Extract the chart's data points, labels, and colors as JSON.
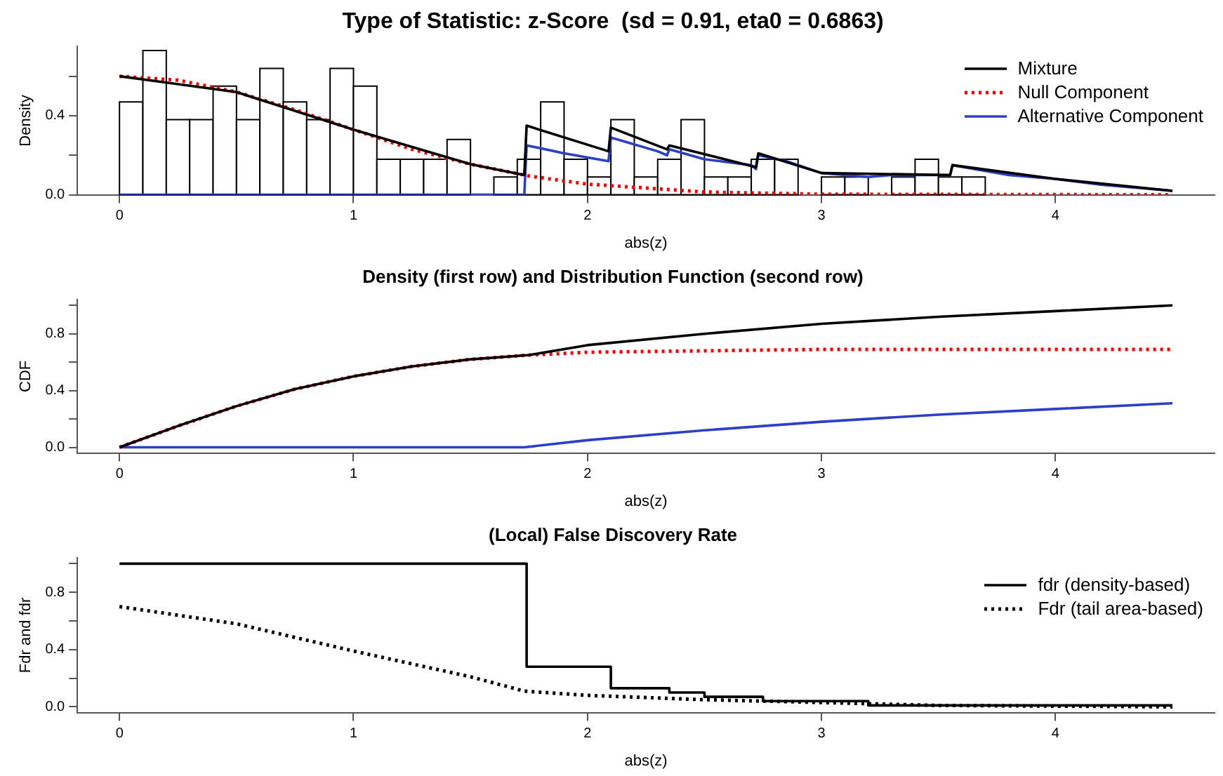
{
  "chart_data": [
    {
      "type": "histogram",
      "title": "Type of Statistic: z-Score  (sd = 0.91, eta0 = 0.6863)",
      "xlabel": "abs(z)",
      "ylabel": "Density",
      "color": "#ffffff",
      "bins": [
        0,
        0.1,
        0.2,
        0.3,
        0.4,
        0.5,
        0.6,
        0.7,
        0.8,
        0.9,
        1,
        1.1,
        1.2,
        1.3,
        1.4,
        1.5,
        1.6,
        1.7,
        1.8,
        1.9,
        2,
        2.1,
        2.2,
        2.3,
        2.4,
        2.5,
        2.6,
        2.7,
        2.8,
        2.9,
        3,
        3.1,
        3.2,
        3.3,
        3.4,
        3.5,
        3.6,
        3.7,
        3.8,
        3.9,
        4,
        4.1,
        4.2,
        4.3,
        4.4,
        4.5
      ],
      "values": [
        0.47,
        0.73,
        0.38,
        0.38,
        0.55,
        0.38,
        0.64,
        0.47,
        0.38,
        0.64,
        0.55,
        0.18,
        0.18,
        0.18,
        0.28,
        0,
        0.09,
        0.18,
        0.47,
        0.18,
        0.09,
        0.38,
        0.09,
        0.18,
        0.38,
        0.09,
        0.09,
        0.18,
        0.18,
        0,
        0.09,
        0.09,
        0,
        0.09,
        0.18,
        0.09,
        0.09,
        0,
        0,
        0,
        0,
        0,
        0,
        0,
        0
      ],
      "xlim": [
        -0.18,
        4.68
      ],
      "xticks": [
        0,
        1,
        2,
        3,
        4
      ],
      "ylim": [
        0,
        0.75
      ],
      "yticks": [
        {
          "value": 0,
          "label": "0.0"
        },
        {
          "value": 0.2,
          "label": null
        },
        {
          "value": 0.4,
          "label": "0.4"
        },
        {
          "value": 0.6,
          "label": null
        }
      ],
      "legend": "top right",
      "series": [
        {
          "name": "Mixture",
          "type": "line",
          "color": "#000000",
          "line_style": "solid",
          "x": [
            0,
            0.5,
            1,
            1.5,
            1.73,
            1.74,
            2.09,
            2.1,
            2.34,
            2.35,
            2.72,
            2.73,
            3,
            3.55,
            3.56,
            4,
            4.5
          ],
          "values": [
            0.6,
            0.52,
            0.33,
            0.155,
            0.1,
            0.35,
            0.22,
            0.34,
            0.23,
            0.25,
            0.14,
            0.21,
            0.11,
            0.1,
            0.15,
            0.08,
            0.02
          ]
        },
        {
          "name": "Null Component",
          "type": "line",
          "color": "#ff0000",
          "line_style": "dotted",
          "x": [
            0,
            0.25,
            0.5,
            0.75,
            1,
            1.25,
            1.5,
            1.75,
            2,
            2.5,
            3,
            4.5
          ],
          "values": [
            0.6,
            0.58,
            0.52,
            0.43,
            0.33,
            0.23,
            0.155,
            0.095,
            0.054,
            0.014,
            0.003,
            0
          ]
        },
        {
          "name": "Alternative Component",
          "type": "line",
          "color": "#2b3fc8",
          "line_style": "solid",
          "x": [
            0,
            1.73,
            1.74,
            1.9,
            2.09,
            2.1,
            2.3,
            2.34,
            2.35,
            2.5,
            2.7,
            2.72,
            2.73,
            2.85,
            3,
            3.2,
            3.3,
            3.5,
            3.55,
            3.56,
            3.8,
            4,
            4.2,
            4.5
          ],
          "values": [
            0,
            0,
            0.25,
            0.21,
            0.17,
            0.29,
            0.22,
            0.2,
            0.23,
            0.18,
            0.15,
            0.13,
            0.2,
            0.17,
            0.11,
            0.09,
            0.1,
            0.1,
            0.1,
            0.15,
            0.1,
            0.08,
            0.05,
            0.02
          ]
        }
      ]
    },
    {
      "type": "line",
      "title": "Density (first row) and Distribution Function (second row)",
      "xlabel": "abs(z)",
      "ylabel": "CDF",
      "xlim": [
        -0.18,
        4.68
      ],
      "xticks": [
        0,
        1,
        2,
        3,
        4
      ],
      "ylim": [
        -0.04,
        1.04
      ],
      "yticks": [
        {
          "value": 0,
          "label": "0.0"
        },
        {
          "value": 0.2,
          "label": null
        },
        {
          "value": 0.4,
          "label": "0.4"
        },
        {
          "value": 0.6,
          "label": null
        },
        {
          "value": 0.8,
          "label": "0.8"
        },
        {
          "value": 1,
          "label": null
        }
      ],
      "series": [
        {
          "color": "#000000",
          "line_style": "solid",
          "x": [
            0,
            0.25,
            0.5,
            0.75,
            1,
            1.25,
            1.5,
            1.75,
            2,
            2.5,
            3,
            3.5,
            4,
            4.5
          ],
          "values": [
            0,
            0.15,
            0.29,
            0.41,
            0.5,
            0.57,
            0.62,
            0.65,
            0.72,
            0.8,
            0.87,
            0.92,
            0.96,
            1
          ]
        },
        {
          "color": "#ff0000",
          "line_style": "dotted",
          "x": [
            0,
            0.25,
            0.5,
            0.75,
            1,
            1.25,
            1.5,
            1.75,
            2,
            2.5,
            3,
            4.5
          ],
          "values": [
            0,
            0.15,
            0.29,
            0.41,
            0.5,
            0.57,
            0.62,
            0.65,
            0.67,
            0.68,
            0.69,
            0.69
          ]
        },
        {
          "color": "#2b3fc8",
          "line_style": "solid",
          "x": [
            0,
            1.73,
            2,
            2.5,
            3,
            3.5,
            4,
            4.5
          ],
          "values": [
            0,
            0,
            0.05,
            0.12,
            0.18,
            0.23,
            0.27,
            0.31
          ]
        }
      ]
    },
    {
      "type": "line",
      "title": "(Local) False Discovery Rate",
      "xlabel": "abs(z)",
      "ylabel": "Fdr and fdr",
      "xlim": [
        -0.18,
        4.68
      ],
      "xticks": [
        0,
        1,
        2,
        3,
        4
      ],
      "ylim": [
        -0.04,
        1.04
      ],
      "yticks": [
        {
          "value": 0,
          "label": "0.0"
        },
        {
          "value": 0.2,
          "label": null
        },
        {
          "value": 0.4,
          "label": "0.4"
        },
        {
          "value": 0.6,
          "label": null
        },
        {
          "value": 0.8,
          "label": "0.8"
        },
        {
          "value": 1,
          "label": null
        }
      ],
      "legend": "top right",
      "series": [
        {
          "name": "fdr (density-based)",
          "type": "step",
          "color": "#000000",
          "line_style": "solid",
          "x": [
            0,
            1.74,
            2.1,
            2.35,
            2.5,
            2.75,
            3.2,
            4.5
          ],
          "values": [
            1,
            0.28,
            0.13,
            0.1,
            0.07,
            0.04,
            0.01,
            0.01
          ]
        },
        {
          "name": "Fdr (tail area-based)",
          "color": "#000000",
          "line_style": "dotted",
          "x": [
            0,
            0.5,
            1,
            1.5,
            1.73,
            2,
            2.5,
            3,
            3.5,
            4.5
          ],
          "values": [
            0.7,
            0.58,
            0.39,
            0.21,
            0.11,
            0.08,
            0.05,
            0.03,
            0.01,
            0
          ]
        }
      ]
    }
  ]
}
